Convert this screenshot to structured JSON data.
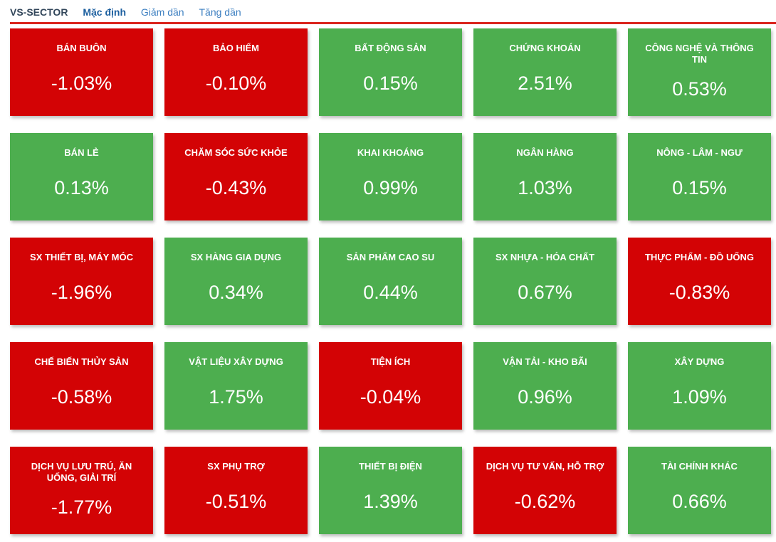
{
  "header": {
    "brand": "VS-SECTOR",
    "tabs": [
      {
        "label": "Mặc định",
        "active": true
      },
      {
        "label": "Giảm dần",
        "active": false
      },
      {
        "label": "Tăng dần",
        "active": false
      }
    ]
  },
  "colors": {
    "up": "#4dae4f",
    "down": "#d30305",
    "divider_red": "#da251d",
    "brand_text": "#33475b",
    "tab_active": "#1c5f9f",
    "tab_link": "#3b7ec0"
  },
  "sectors": [
    {
      "name": "BÁN BUÔN",
      "change": "-1.03%",
      "trend": "down"
    },
    {
      "name": "BẢO HIỂM",
      "change": "-0.10%",
      "trend": "down"
    },
    {
      "name": "BẤT ĐỘNG SẢN",
      "change": "0.15%",
      "trend": "up"
    },
    {
      "name": "CHỨNG KHOÁN",
      "change": "2.51%",
      "trend": "up"
    },
    {
      "name": "CÔNG NGHỆ VÀ THÔNG\nTIN",
      "change": "0.53%",
      "trend": "up"
    },
    {
      "name": "BÁN LẺ",
      "change": "0.13%",
      "trend": "up"
    },
    {
      "name": "CHĂM SÓC SỨC KHỎE",
      "change": "-0.43%",
      "trend": "down"
    },
    {
      "name": "KHAI KHOÁNG",
      "change": "0.99%",
      "trend": "up"
    },
    {
      "name": "NGÂN HÀNG",
      "change": "1.03%",
      "trend": "up"
    },
    {
      "name": "NÔNG - LÂM - NGƯ",
      "change": "0.15%",
      "trend": "up"
    },
    {
      "name": "SX THIẾT BỊ, MÁY MÓC",
      "change": "-1.96%",
      "trend": "down"
    },
    {
      "name": "SX HÀNG GIA DỤNG",
      "change": "0.34%",
      "trend": "up"
    },
    {
      "name": "SẢN PHẨM CAO SU",
      "change": "0.44%",
      "trend": "up"
    },
    {
      "name": "SX NHỰA - HÓA CHẤT",
      "change": "0.67%",
      "trend": "up"
    },
    {
      "name": "THỰC PHẨM - ĐỒ UỐNG",
      "change": "-0.83%",
      "trend": "down"
    },
    {
      "name": "CHẾ BIẾN THỦY SẢN",
      "change": "-0.58%",
      "trend": "down"
    },
    {
      "name": "VẬT LIỆU XÂY DỰNG",
      "change": "1.75%",
      "trend": "up"
    },
    {
      "name": "TIỆN ÍCH",
      "change": "-0.04%",
      "trend": "down"
    },
    {
      "name": "VẬN TẢI - KHO BÃI",
      "change": "0.96%",
      "trend": "up"
    },
    {
      "name": "XÂY DỰNG",
      "change": "1.09%",
      "trend": "up"
    },
    {
      "name": "DỊCH VỤ LƯU TRÚ, ĂN\nUỐNG, GIẢI TRÍ",
      "change": "-1.77%",
      "trend": "down"
    },
    {
      "name": "SX PHỤ TRỢ",
      "change": "-0.51%",
      "trend": "down"
    },
    {
      "name": "THIẾT BỊ ĐIỆN",
      "change": "1.39%",
      "trend": "up"
    },
    {
      "name": "DỊCH VỤ TƯ VẤN, HỖ TRỢ",
      "change": "-0.62%",
      "trend": "down"
    },
    {
      "name": "TÀI CHÍNH KHÁC",
      "change": "0.66%",
      "trend": "up"
    }
  ]
}
